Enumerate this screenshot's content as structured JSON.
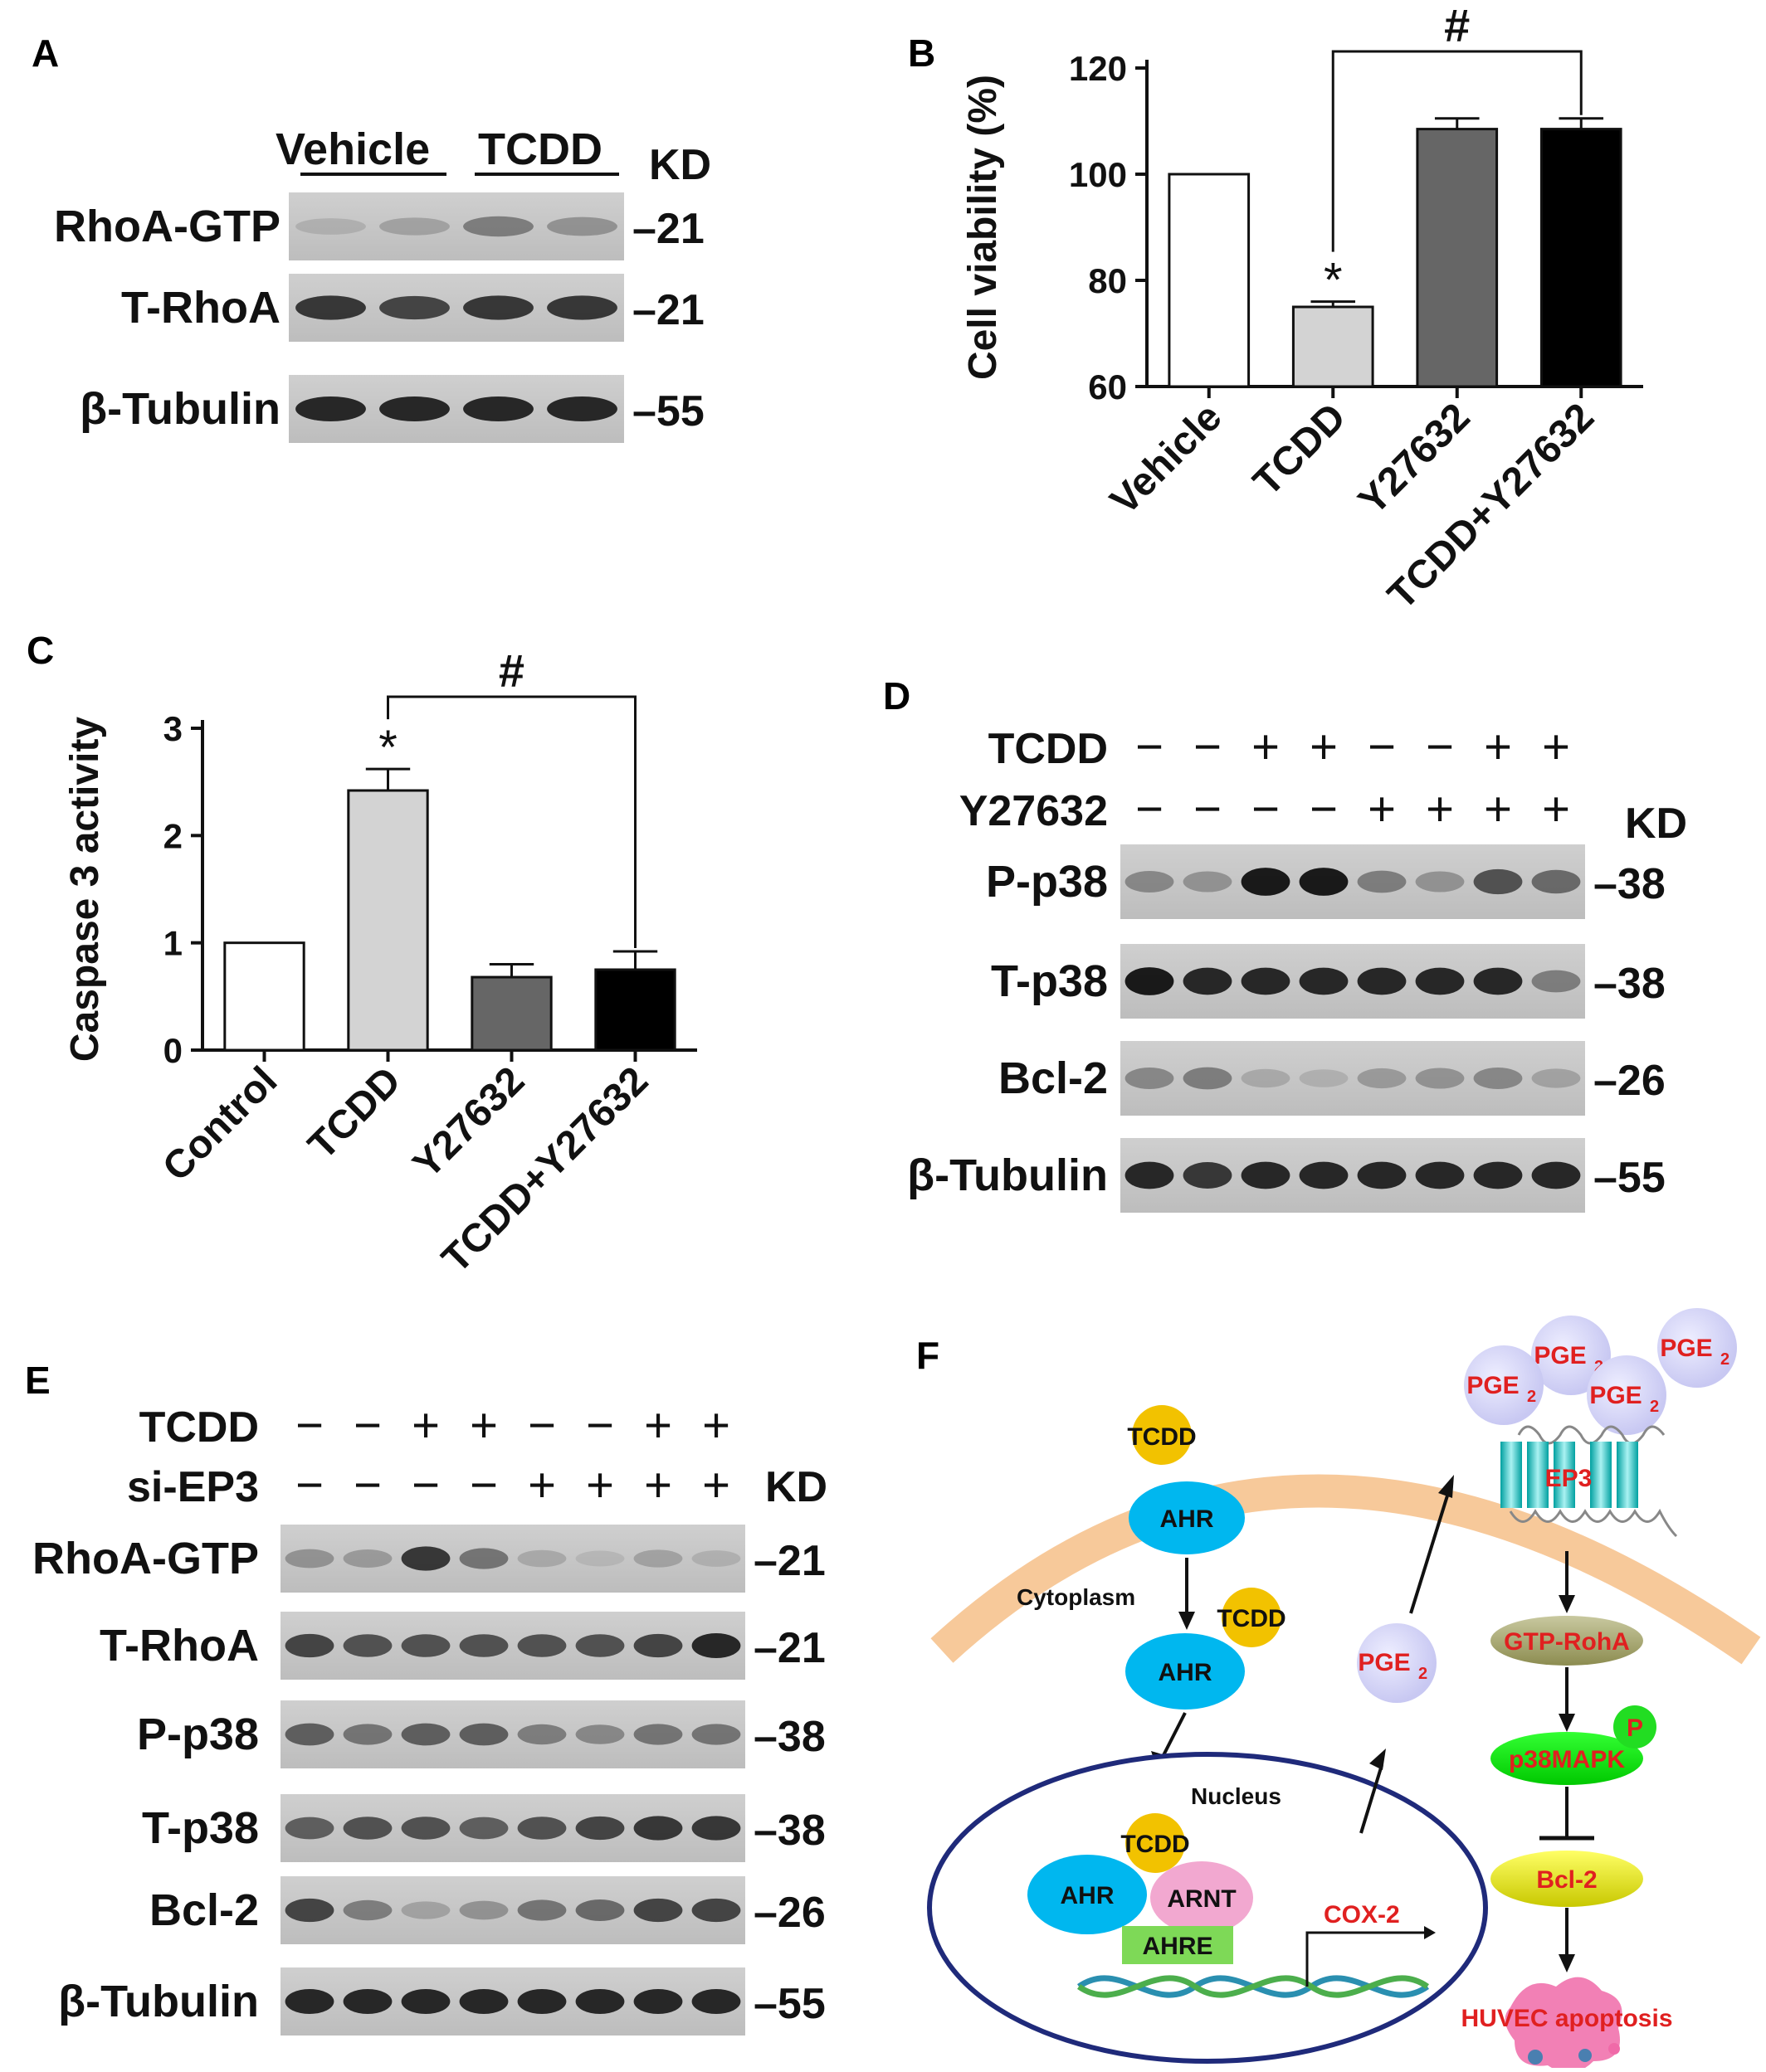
{
  "panels": {
    "A": {
      "letter": "A",
      "groups": [
        "Vehicle",
        "TCDD"
      ],
      "kd_header": "KD",
      "rows": [
        {
          "label": "RhoA-GTP",
          "kd": "21",
          "bands": [
            0.25,
            0.35,
            0.55,
            0.45
          ]
        },
        {
          "label": "T-RhoA",
          "kd": "21",
          "bands": [
            0.85,
            0.8,
            0.85,
            0.85
          ]
        },
        {
          "label": "β-Tubulin",
          "kd": "55",
          "bands": [
            0.9,
            0.9,
            0.9,
            0.9
          ]
        }
      ]
    },
    "B": {
      "letter": "B",
      "significance": [
        "*",
        "#"
      ],
      "chart_data": {
        "type": "bar",
        "categories": [
          "Vehicle",
          "TCDD",
          "Y27632",
          "TCDD+Y27632"
        ],
        "values": [
          100,
          75,
          108.5,
          108.5
        ],
        "errors": [
          0,
          1,
          2,
          2
        ],
        "colors": [
          "#ffffff",
          "#d3d3d3",
          "#666666",
          "#000000"
        ],
        "ylabel": "Cell viability (%)",
        "ylim": [
          60,
          120
        ],
        "yticks": [
          60,
          80,
          100,
          120
        ],
        "grid": false
      }
    },
    "C": {
      "letter": "C",
      "significance": [
        "*",
        "#"
      ],
      "chart_data": {
        "type": "bar",
        "categories": [
          "Control",
          "TCDD",
          "Y27632",
          "TCDD+Y27632"
        ],
        "values": [
          1.0,
          2.42,
          0.68,
          0.75
        ],
        "errors": [
          0,
          0.2,
          0.12,
          0.17
        ],
        "colors": [
          "#ffffff",
          "#d3d3d3",
          "#666666",
          "#000000"
        ],
        "ylabel": "Caspase 3 activity",
        "ylim": [
          0,
          3
        ],
        "yticks": [
          0,
          1,
          2,
          3
        ],
        "grid": false
      }
    },
    "D": {
      "letter": "D",
      "treatments": [
        {
          "name": "TCDD",
          "signs": [
            "−",
            "−",
            "+",
            "+",
            "−",
            "−",
            "+",
            "+"
          ]
        },
        {
          "name": "Y27632",
          "signs": [
            "−",
            "−",
            "−",
            "−",
            "+",
            "+",
            "+",
            "+"
          ]
        }
      ],
      "kd_header": "KD",
      "rows": [
        {
          "label": "P-p38",
          "kd": "38",
          "bands": [
            0.5,
            0.45,
            0.95,
            0.95,
            0.55,
            0.45,
            0.75,
            0.65
          ]
        },
        {
          "label": "T-p38",
          "kd": "38",
          "bands": [
            0.95,
            0.9,
            0.9,
            0.9,
            0.9,
            0.9,
            0.9,
            0.55
          ]
        },
        {
          "label": "Bcl-2",
          "kd": "26",
          "bands": [
            0.5,
            0.55,
            0.3,
            0.25,
            0.4,
            0.45,
            0.5,
            0.35
          ]
        },
        {
          "label": "β-Tubulin",
          "kd": "55",
          "bands": [
            0.9,
            0.85,
            0.9,
            0.9,
            0.9,
            0.9,
            0.9,
            0.9
          ]
        }
      ]
    },
    "E": {
      "letter": "E",
      "treatments": [
        {
          "name": "TCDD",
          "signs": [
            "−",
            "−",
            "+",
            "+",
            "−",
            "−",
            "+",
            "+"
          ]
        },
        {
          "name": "si-EP3",
          "signs": [
            "−",
            "−",
            "−",
            "−",
            "+",
            "+",
            "+",
            "+"
          ]
        }
      ],
      "kd_header": "KD",
      "rows": [
        {
          "label": "RhoA-GTP",
          "kd": "21",
          "bands": [
            0.45,
            0.4,
            0.85,
            0.6,
            0.3,
            0.2,
            0.35,
            0.25
          ]
        },
        {
          "label": "T-RhoA",
          "kd": "21",
          "bands": [
            0.8,
            0.75,
            0.75,
            0.75,
            0.75,
            0.75,
            0.8,
            0.9
          ]
        },
        {
          "label": "P-p38",
          "kd": "38",
          "bands": [
            0.7,
            0.6,
            0.7,
            0.7,
            0.55,
            0.5,
            0.6,
            0.6
          ]
        },
        {
          "label": "T-p38",
          "kd": "38",
          "bands": [
            0.7,
            0.75,
            0.75,
            0.7,
            0.75,
            0.8,
            0.85,
            0.85
          ]
        },
        {
          "label": "Bcl-2",
          "kd": "26",
          "bands": [
            0.8,
            0.55,
            0.35,
            0.45,
            0.6,
            0.65,
            0.8,
            0.8
          ]
        },
        {
          "label": "β-Tubulin",
          "kd": "55",
          "bands": [
            0.9,
            0.9,
            0.9,
            0.9,
            0.9,
            0.9,
            0.9,
            0.9
          ]
        }
      ]
    },
    "F": {
      "letter": "F",
      "labels": {
        "tcdd": "TCDD",
        "ahr": "AHR",
        "cytoplasm": "Cytoplasm",
        "nucleus": "Nucleus",
        "arnt": "ARNT",
        "ahre": "AHRE",
        "cox2": "COX-2",
        "pge": "PGE",
        "pge_sub": "2",
        "ep3": "EP3",
        "gtp_roha": "GTP-RohA",
        "p38mapk": "p38MAPK",
        "p": "P",
        "bcl2": "Bcl-2",
        "apoptosis": "HUVEC apoptosis"
      }
    }
  }
}
